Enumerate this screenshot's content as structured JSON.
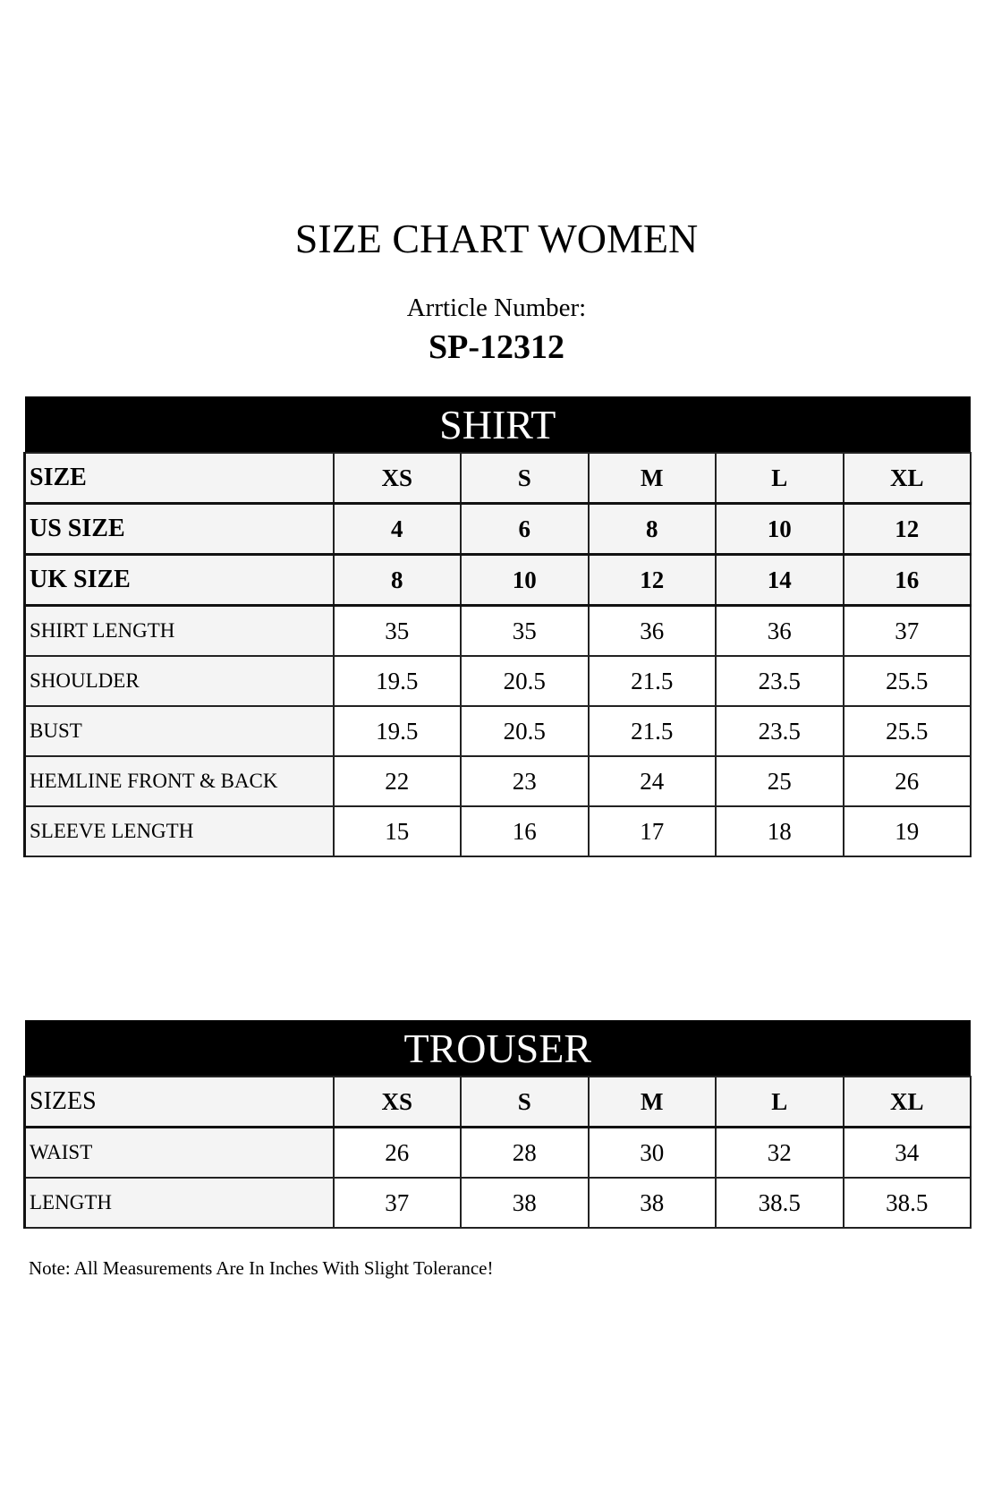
{
  "title": "SIZE CHART WOMEN",
  "article_label": "Arrticle Number:",
  "article_number": "SP-12312",
  "shirt": {
    "heading": "SHIRT",
    "rows": [
      {
        "label": "SIZE",
        "values": [
          "XS",
          "S",
          "M",
          "L",
          "XL"
        ],
        "bold": true
      },
      {
        "label": "US SIZE",
        "values": [
          "4",
          "6",
          "8",
          "10",
          "12"
        ],
        "bold": true
      },
      {
        "label": "UK SIZE",
        "values": [
          "8",
          "10",
          "12",
          "14",
          "16"
        ],
        "bold": true
      },
      {
        "label": "SHIRT LENGTH",
        "values": [
          "35",
          "35",
          "36",
          "36",
          "37"
        ]
      },
      {
        "label": "SHOULDER",
        "values": [
          "19.5",
          "20.5",
          "21.5",
          "23.5",
          "25.5"
        ]
      },
      {
        "label": "BUST",
        "values": [
          "19.5",
          "20.5",
          "21.5",
          "23.5",
          "25.5"
        ]
      },
      {
        "label": "HEMLINE FRONT & BACK",
        "values": [
          "22",
          "23",
          "24",
          "25",
          "26"
        ]
      },
      {
        "label": "SLEEVE LENGTH",
        "values": [
          "15",
          "16",
          "17",
          "18",
          "19"
        ]
      }
    ]
  },
  "trouser": {
    "heading": "TROUSER",
    "rows": [
      {
        "label": "SIZES",
        "values": [
          "XS",
          "S",
          "M",
          "L",
          "XL"
        ],
        "bold": true,
        "label_normal": true
      },
      {
        "label": "WAIST",
        "values": [
          "26",
          "28",
          "30",
          "32",
          "34"
        ]
      },
      {
        "label": "LENGTH",
        "values": [
          "37",
          "38",
          "38",
          "38.5",
          "38.5"
        ]
      }
    ]
  },
  "note": "Note: All Measurements Are In Inches With Slight Tolerance!"
}
